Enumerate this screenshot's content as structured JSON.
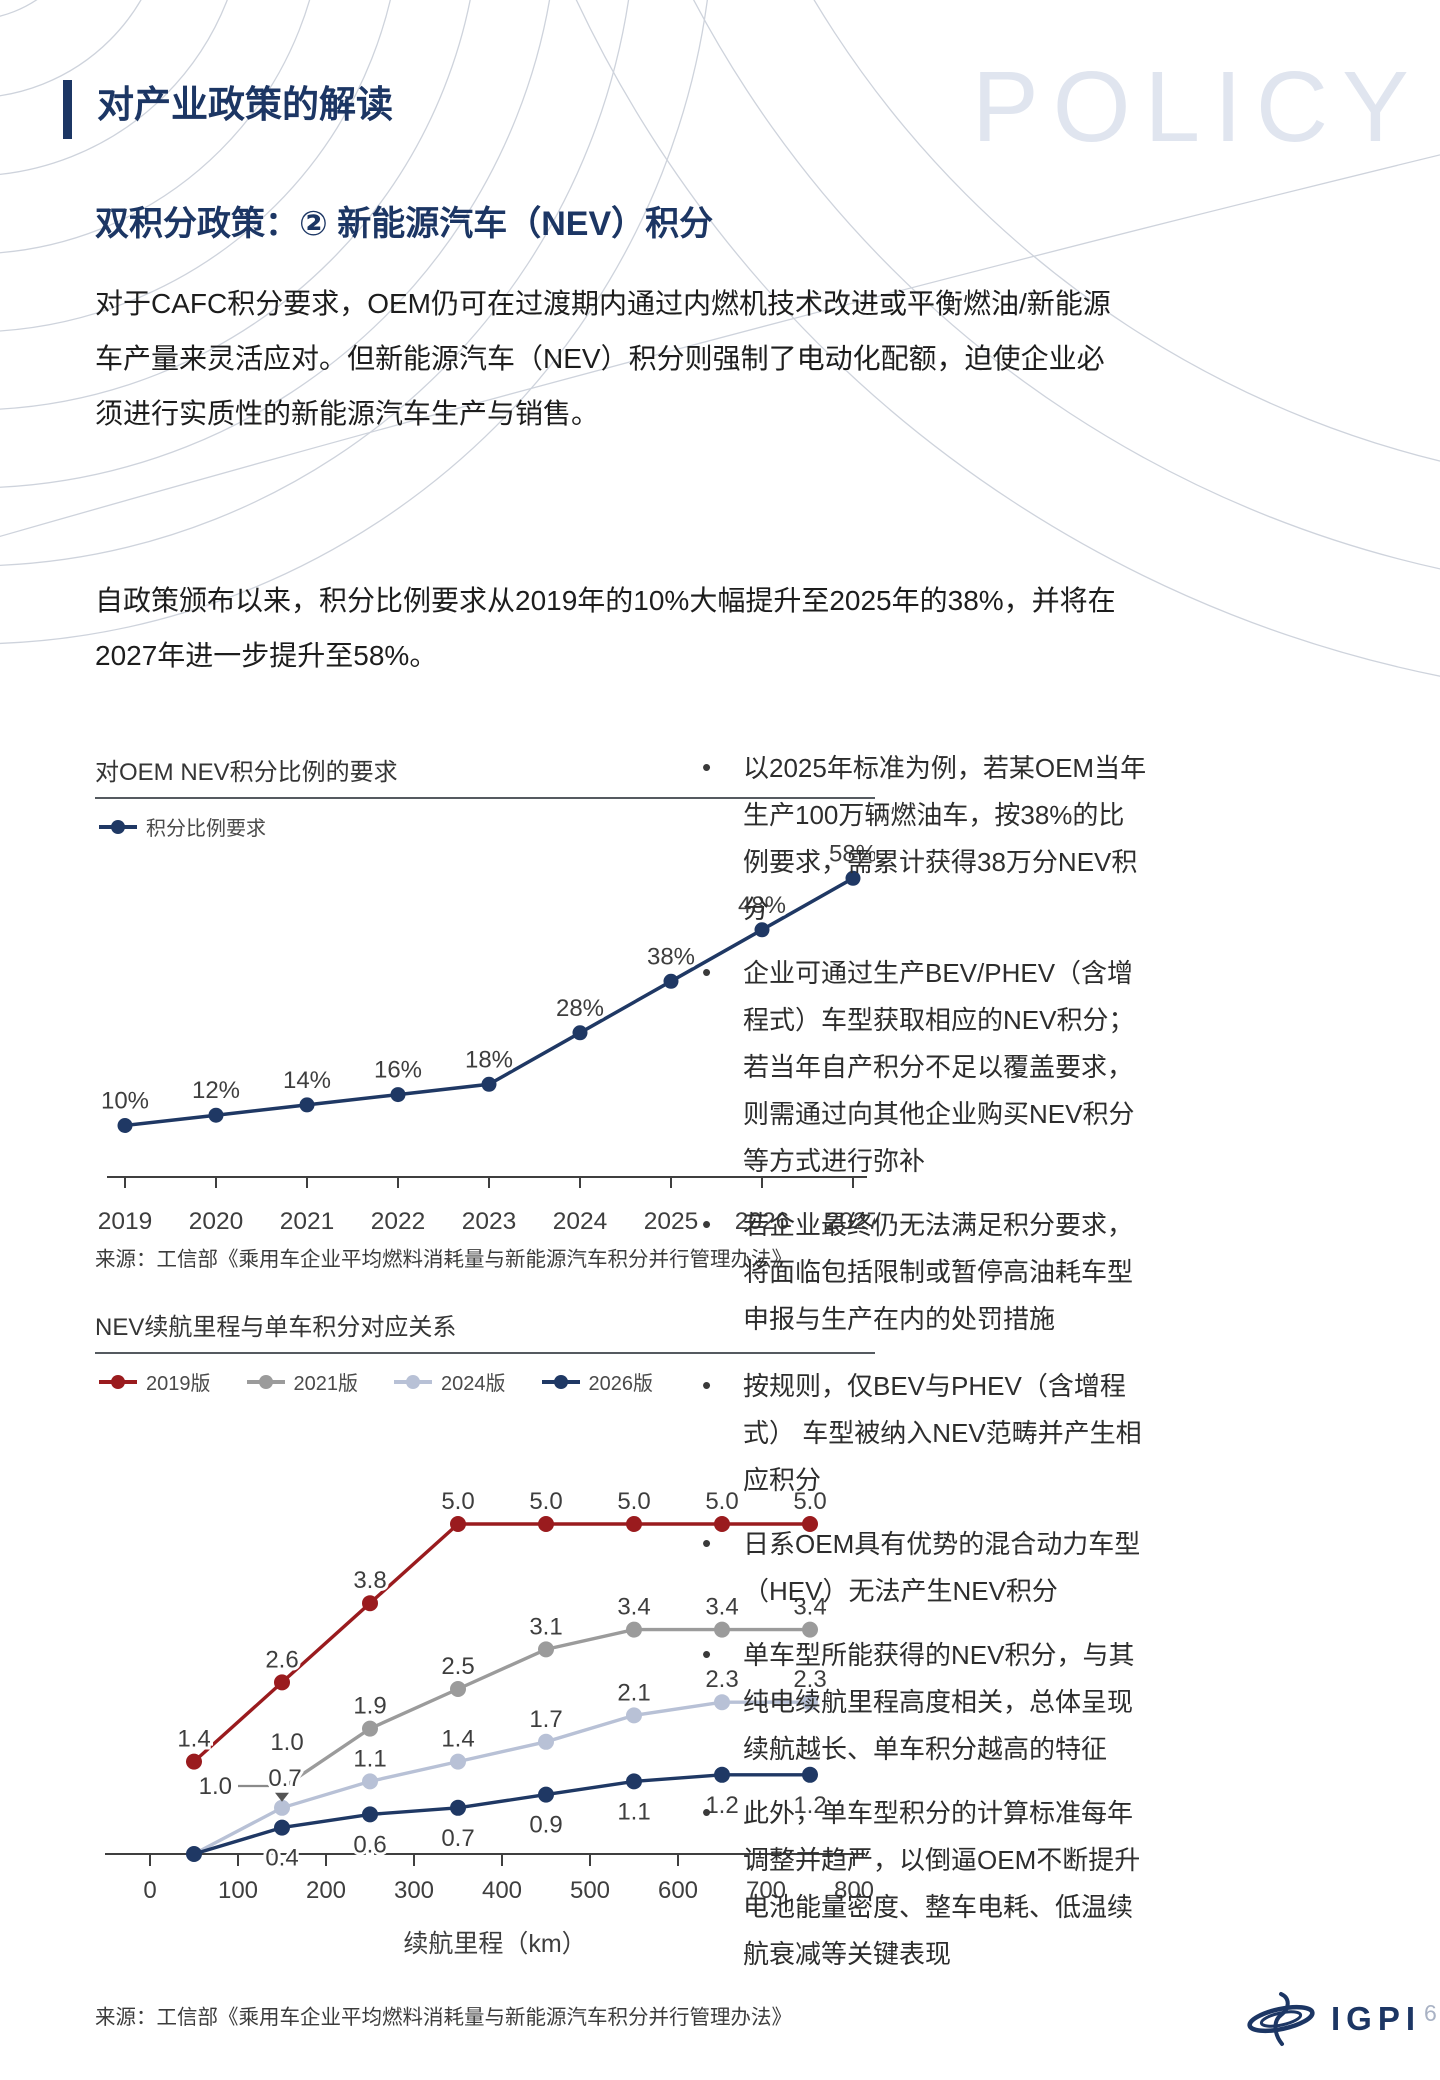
{
  "page": {
    "watermark": "POLICY",
    "header_title": "对产业政策的解读",
    "subtitle": "双积分政策：② 新能源汽车（NEV）积分",
    "paragraph1_lines": [
      "对于CAFC积分要求，OEM仍可在过渡期内通过内燃机技术改进或平衡燃油/新能源",
      "车产量来灵活应对。但新能源汽车（NEV）积分则强制了电动化配额，迫使企业必",
      "须进行实质性的新能源汽车生产与销售。"
    ],
    "paragraph2_lines": [
      "自政策颁布以来，积分比例要求从2019年的10%大幅提升至2025年的38%，并将在",
      "2027年进一步提升至58%。"
    ],
    "logo_text": "IGPI",
    "page_number": "6"
  },
  "colors": {
    "navy": "#1c3664",
    "chart_navy": "#1f3864",
    "red": "#9a1b1e",
    "gray": "#9b9b9b",
    "lightgray": "#b8c1d6",
    "label": "#3e3e3e",
    "axis": "#3f3f3f",
    "watermark": "#e0e5ef",
    "deco": "#ced3dc"
  },
  "bullets_group1": [
    "以2025年标准为例，若某OEM当年生产100万辆燃油车，按38%的比例要求，需累计获得38万分NEV积分",
    "企业可通过生产BEV/PHEV（含增程式）车型获取相应的NEV积分；若当年自产积分不足以覆盖要求，则需通过向其他企业购买NEV积分等方式进行弥补",
    "若企业最终仍无法满足积分要求，将面临包括限制或暂停高油耗车型申报与生产在内的处罚措施"
  ],
  "bullets_group2": [
    "按规则，仅BEV与PHEV（含增程式） 车型被纳入NEV范畴并产生相应积分",
    "日系OEM具有优势的混合动力车型（HEV）无法产生NEV积分",
    "单车型所能获得的NEV积分，与其纯电续航里程高度相关，总体呈现续航越长、单车积分越高的特征",
    "此外，单车型积分的计算标准每年调整并趋严，以倒逼OEM不断提升电池能量密度、整车电耗、低温续航衰减等关键表现"
  ],
  "chart_data": [
    {
      "type": "line",
      "title": "对OEM NEV积分比例的要求",
      "legend": [
        {
          "label": "积分比例要求",
          "color": "#1f3864"
        }
      ],
      "categories": [
        "2019",
        "2020",
        "2021",
        "2022",
        "2023",
        "2024",
        "2025",
        "2026",
        "2027"
      ],
      "values": [
        10,
        12,
        14,
        16,
        18,
        28,
        38,
        48,
        58
      ],
      "value_labels": [
        "10%",
        "12%",
        "14%",
        "16%",
        "18%",
        "28%",
        "38%",
        "48%",
        "58%"
      ],
      "ylim": [
        0,
        65
      ],
      "grid": false,
      "legend_position": "top-left",
      "source": "来源：工信部《乘用车企业平均燃料消耗量与新能源汽车积分并行管理办法》"
    },
    {
      "type": "line",
      "title": "NEV续航里程与单车积分对应关系",
      "xlabel": "续航里程（km）",
      "x_ticks": [
        0,
        100,
        200,
        300,
        400,
        500,
        600,
        700,
        800
      ],
      "xlim": [
        0,
        800
      ],
      "ylim": [
        0,
        5.5
      ],
      "grid": false,
      "legend_position": "top-left",
      "series": [
        {
          "name": "2019版",
          "color": "#9a1b1e",
          "label_pos": "above",
          "points": [
            {
              "x": 50,
              "y": 1.4,
              "label": "1.4"
            },
            {
              "x": 150,
              "y": 2.6,
              "label": "2.6"
            },
            {
              "x": 250,
              "y": 3.8,
              "label": "3.8"
            },
            {
              "x": 350,
              "y": 5.0,
              "label": "5.0"
            },
            {
              "x": 450,
              "y": 5.0,
              "label": "5.0"
            },
            {
              "x": 550,
              "y": 5.0,
              "label": "5.0"
            },
            {
              "x": 650,
              "y": 5.0,
              "label": "5.0"
            },
            {
              "x": 750,
              "y": 5.0,
              "label": "5.0"
            }
          ]
        },
        {
          "name": "2021版",
          "color": "#9b9b9b",
          "label_pos": "above",
          "points": [
            {
              "x": 150,
              "y": 1.0,
              "label": null,
              "dot": false
            },
            {
              "x": 250,
              "y": 1.9,
              "label": "1.9"
            },
            {
              "x": 350,
              "y": 2.5,
              "label": "2.5"
            },
            {
              "x": 450,
              "y": 3.1,
              "label": "3.1"
            },
            {
              "x": 550,
              "y": 3.4,
              "label": "3.4"
            },
            {
              "x": 650,
              "y": 3.4,
              "label": "3.4"
            },
            {
              "x": 750,
              "y": 3.4,
              "label": "3.4"
            }
          ]
        },
        {
          "name": "2024版",
          "color": "#b8c1d6",
          "label_pos": "above",
          "points": [
            {
              "x": 50,
              "y": 0,
              "label": null,
              "dot": false
            },
            {
              "x": 150,
              "y": 0.7,
              "label": null
            },
            {
              "x": 250,
              "y": 1.1,
              "label": "1.1"
            },
            {
              "x": 350,
              "y": 1.4,
              "label": "1.4"
            },
            {
              "x": 450,
              "y": 1.7,
              "label": "1.7"
            },
            {
              "x": 550,
              "y": 2.1,
              "label": "2.1"
            },
            {
              "x": 650,
              "y": 2.3,
              "label": "2.3"
            },
            {
              "x": 750,
              "y": 2.3,
              "label": "2.3"
            }
          ]
        },
        {
          "name": "2026版",
          "color": "#1f3864",
          "label_pos": "below",
          "points": [
            {
              "x": 50,
              "y": 0,
              "label": null
            },
            {
              "x": 150,
              "y": 0.4,
              "label": "0.4"
            },
            {
              "x": 250,
              "y": 0.6,
              "label": "0.6"
            },
            {
              "x": 350,
              "y": 0.7,
              "label": "0.7"
            },
            {
              "x": 450,
              "y": 0.9,
              "label": "0.9"
            },
            {
              "x": 550,
              "y": 1.1,
              "label": "1.1"
            },
            {
              "x": 650,
              "y": 1.2,
              "label": "1.2"
            },
            {
              "x": 750,
              "y": 1.2,
              "label": "1.2"
            }
          ]
        }
      ],
      "annotations": [
        {
          "type": "leader-left",
          "text": "1.0",
          "x": 150,
          "y": 1.0
        },
        {
          "type": "stack-above",
          "text": "1.0",
          "x": 150,
          "y": 1.0
        },
        {
          "type": "arrow-down",
          "text": "0.7",
          "x": 150,
          "y": 0.7
        }
      ],
      "source": "来源：工信部《乘用车企业平均燃料消耗量与新能源汽车积分并行管理办法》"
    }
  ]
}
